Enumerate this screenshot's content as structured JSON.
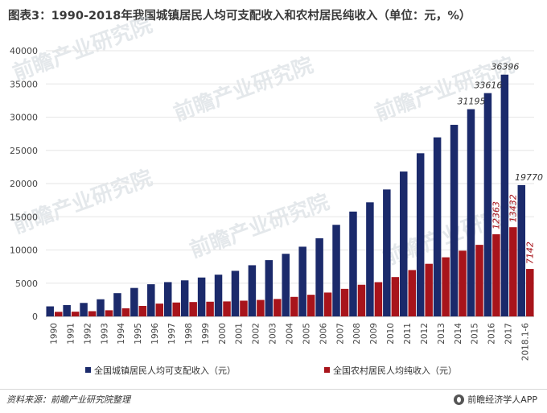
{
  "footer": {
    "source": "资料来源：前瞻产业研究院整理",
    "brand": "前瞻经济学人APP",
    "brand_icon": "qianzhan-logo-icon"
  },
  "watermark": {
    "text": "前瞻产业研究院"
  },
  "colors": {
    "urban": "#1b2a6b",
    "rural": "#a8141b",
    "grid": "#e6e6e6"
  },
  "chart_data": {
    "type": "bar",
    "title": "图表3：1990-2018年我国城镇居民人均可支配收入和农村居民纯收入（单位：元，%）",
    "xlabel": "",
    "ylabel": "",
    "ylim": [
      0,
      40000
    ],
    "yticks": [
      0,
      5000,
      10000,
      15000,
      20000,
      25000,
      30000,
      35000,
      40000
    ],
    "grid": true,
    "legend": "bottom",
    "categories": [
      "1990",
      "1991",
      "1992",
      "1993",
      "1994",
      "1995",
      "1996",
      "1997",
      "1998",
      "1999",
      "2000",
      "2001",
      "2002",
      "2003",
      "2004",
      "2005",
      "2006",
      "2007",
      "2008",
      "2009",
      "2010",
      "2011",
      "2012",
      "2013",
      "2014",
      "2015",
      "2016",
      "2017",
      "2018.1-6"
    ],
    "series": [
      {
        "name": "全国城镇居民人均可支配收入（元）",
        "values": [
          1510,
          1701,
          2027,
          2577,
          3496,
          4283,
          4839,
          5160,
          5425,
          5854,
          6280,
          6860,
          7703,
          8472,
          9422,
          10493,
          11759,
          13786,
          15781,
          17175,
          19109,
          21810,
          24565,
          26955,
          28844,
          31195,
          33616,
          36396,
          19770
        ],
        "labeled_values": [
          {
            "index": 25,
            "label": "31195"
          },
          {
            "index": 26,
            "label": "33616"
          },
          {
            "index": 27,
            "label": "36396"
          },
          {
            "index": 28,
            "label": "19770"
          }
        ]
      },
      {
        "name": "全国农村居民人均纯收入（元）",
        "values": [
          686,
          709,
          784,
          922,
          1221,
          1578,
          1926,
          2090,
          2162,
          2210,
          2253,
          2366,
          2476,
          2622,
          2936,
          3255,
          3587,
          4140,
          4761,
          5153,
          5919,
          6977,
          7917,
          8896,
          9892,
          10772,
          12363,
          13432,
          7142
        ],
        "labeled_values": [
          {
            "index": 26,
            "label": "12363"
          },
          {
            "index": 27,
            "label": "13432"
          },
          {
            "index": 28,
            "label": "7142"
          }
        ]
      }
    ]
  }
}
